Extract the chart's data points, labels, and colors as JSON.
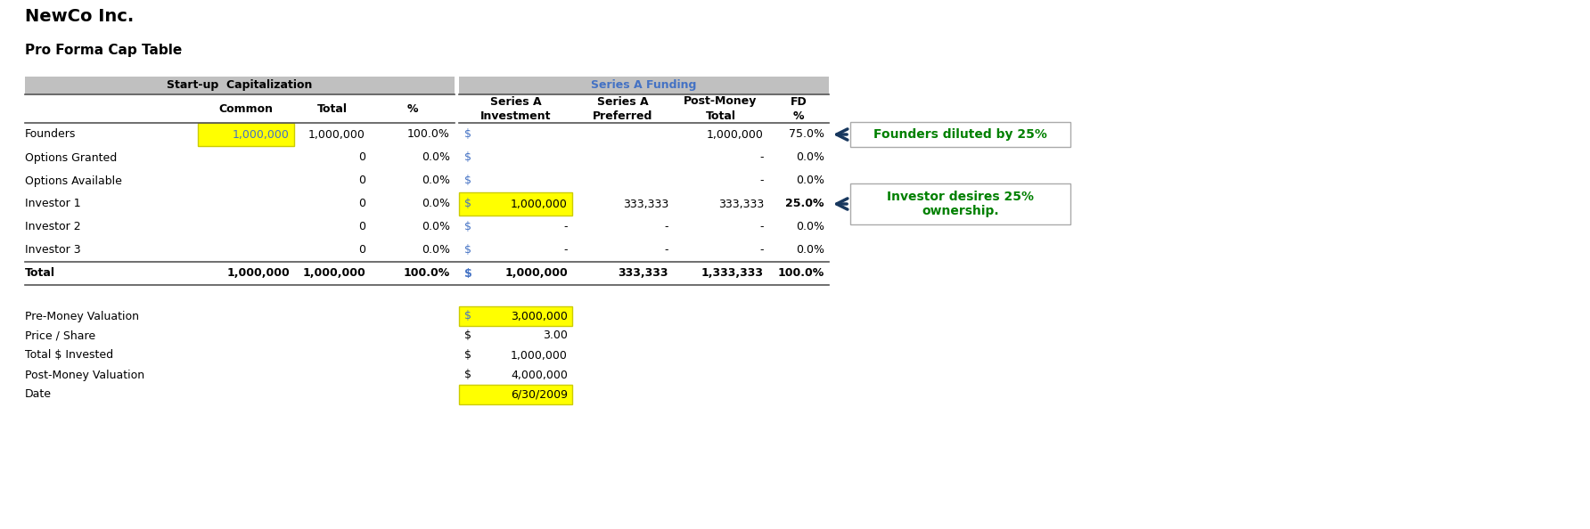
{
  "title": "NewCo Inc.",
  "subtitle": "Pro Forma Cap Table",
  "section1_header": "Start-up  Capitalization",
  "section2_header": "Series A Funding",
  "row_labels": [
    "Founders",
    "Options Granted",
    "Options Available",
    "Investor 1",
    "Investor 2",
    "Investor 3",
    "Total"
  ],
  "data": [
    [
      "1,000,000",
      "1,000,000",
      "100.0%",
      "",
      "",
      "1,000,000",
      "75.0%"
    ],
    [
      "",
      "0",
      "0.0%",
      "",
      "",
      "-",
      "0.0%"
    ],
    [
      "",
      "0",
      "0.0%",
      "",
      "",
      "-",
      "0.0%"
    ],
    [
      "",
      "0",
      "0.0%",
      "1,000,000",
      "333,333",
      "333,333",
      "25.0%"
    ],
    [
      "",
      "0",
      "0.0%",
      "-",
      "-",
      "-",
      "0.0%"
    ],
    [
      "",
      "0",
      "0.0%",
      "-",
      "-",
      "-",
      "0.0%"
    ],
    [
      "1,000,000",
      "1,000,000",
      "100.0%",
      "1,000,000",
      "333,333",
      "1,333,333",
      "100.0%"
    ]
  ],
  "bottom_labels": [
    "Pre-Money Valuation",
    "Price / Share",
    "Total $ Invested",
    "Post-Money Valuation",
    "Date"
  ],
  "bottom_values": [
    [
      "$",
      "3,000,000",
      true
    ],
    [
      "$",
      "3.00",
      false
    ],
    [
      "$",
      "1,000,000",
      false
    ],
    [
      "$",
      "4,000,000",
      false
    ],
    [
      "",
      "6/30/2009",
      true
    ]
  ],
  "annotation1_text": "Founders diluted by 25%",
  "annotation2_text": "Investor desires 25%\nownership.",
  "header_bg": "#C0C0C0",
  "series_a_header_color": "#4472C4",
  "yellow_bg": "#FFFF00",
  "yellow_border": "#CCCC00",
  "annotation_text_color": "#008000",
  "arrow_color": "#17375E",
  "line_color": "#808080",
  "blue_dollar_color": "#4472C4",
  "bg_color": "#ffffff"
}
